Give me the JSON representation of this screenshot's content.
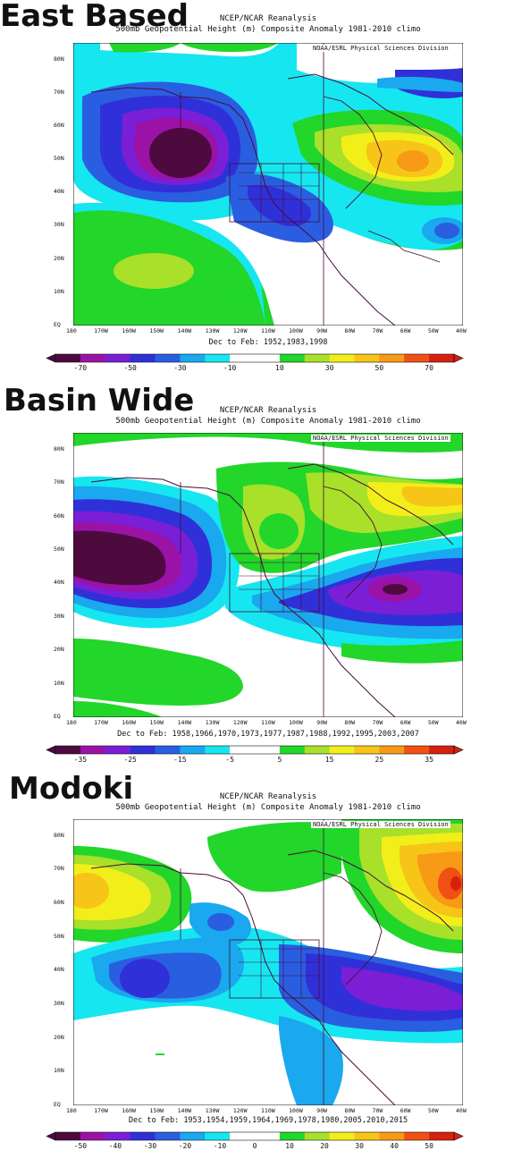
{
  "panels": [
    {
      "title": "East Based",
      "header_line1": "NCEP/NCAR Reanalysis",
      "header_line2": "500mb Geopotential Height (m) Composite Anomaly 1981-2010 climo",
      "credit": "NOAA/ESRL Physical Sciences Division",
      "footer": "Dec to Feb: 1952,1983,1998",
      "colorbar_ticks": [
        "-70",
        "-50",
        "-30",
        "-10",
        "10",
        "30",
        "50",
        "70"
      ]
    },
    {
      "title": "Basin Wide",
      "header_line1": "NCEP/NCAR Reanalysis",
      "header_line2": "500mb Geopotential Height (m) Composite Anomaly 1981-2010 climo",
      "credit": "NOAA/ESRL Physical Sciences Division",
      "footer": "Dec to Feb: 1958,1966,1970,1973,1977,1987,1988,1992,1995,2003,2007",
      "colorbar_ticks": [
        "-35",
        "-25",
        "-15",
        "-5",
        "5",
        "15",
        "25",
        "35"
      ]
    },
    {
      "title": "Modoki",
      "header_line1": "NCEP/NCAR Reanalysis",
      "header_line2": "500mb Geopotential Height (m) Composite Anomaly 1981-2010 climo",
      "credit": "NOAA/ESRL Physical Sciences Division",
      "footer": "Dec to Feb: 1953,1954,1959,1964,1969,1978,1980,2005,2010,2015",
      "colorbar_ticks": [
        "-50",
        "-40",
        "-30",
        "-20",
        "-10",
        "0",
        "10",
        "20",
        "30",
        "40",
        "50"
      ]
    }
  ],
  "lat_labels": [
    "80N",
    "70N",
    "60N",
    "50N",
    "40N",
    "30N",
    "20N",
    "10N",
    "EQ"
  ],
  "lon_labels": [
    "180",
    "170W",
    "160W",
    "150W",
    "140W",
    "130W",
    "120W",
    "110W",
    "100W",
    "90W",
    "80W",
    "70W",
    "60W",
    "50W",
    "40W"
  ],
  "palette": {
    "neg_deep": "#4d0a3f",
    "neg_purple": "#9b12a6",
    "neg_violet": "#7a1fd6",
    "neg_blue": "#3030d8",
    "neg_mid": "#2a5ee0",
    "neg_light": "#1aa8ee",
    "neg_cyan": "#16e6f0",
    "neutral": "#ffffff",
    "pos_green": "#22d62a",
    "pos_lime": "#a8e02a",
    "pos_yellow": "#f2ee1a",
    "pos_gold": "#f7c418",
    "pos_orange": "#f79a16",
    "pos_red": "#f05014",
    "pos_dark": "#d82010"
  }
}
